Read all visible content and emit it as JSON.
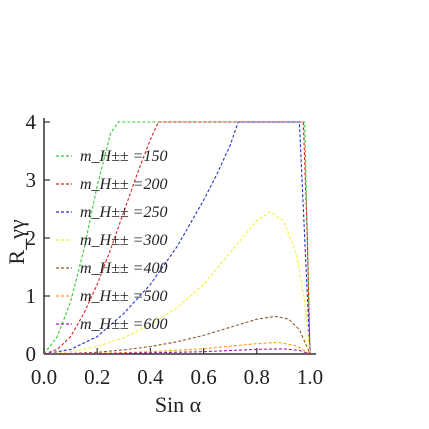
{
  "chart_data": {
    "type": "line",
    "xlabel": "Sin α",
    "ylabel": "R_γγ",
    "xlim": [
      0,
      1.0
    ],
    "ylim": [
      0,
      4
    ],
    "x_ticks": [
      "0.0",
      "0.2",
      "0.4",
      "0.6",
      "0.8",
      "1.0"
    ],
    "y_ticks": [
      "0",
      "1",
      "2",
      "3",
      "4"
    ],
    "legend_position": "top-left",
    "grid": false,
    "line_style": "dashed",
    "series": [
      {
        "name": "m_H±± =150",
        "color": "#33cc33",
        "x": [
          0.0,
          0.05,
          0.1,
          0.15,
          0.2,
          0.25,
          0.28,
          0.98,
          0.99,
          1.0
        ],
        "y": [
          0.0,
          0.3,
          0.9,
          1.8,
          2.9,
          3.8,
          4.0,
          4.0,
          2.0,
          0.0
        ]
      },
      {
        "name": "m_H±± =200",
        "color": "#e02020",
        "x": [
          0.0,
          0.05,
          0.1,
          0.15,
          0.2,
          0.25,
          0.3,
          0.35,
          0.4,
          0.43,
          0.975,
          0.99,
          1.0
        ],
        "y": [
          0.0,
          0.08,
          0.3,
          0.7,
          1.2,
          1.8,
          2.45,
          3.1,
          3.7,
          4.0,
          4.0,
          2.0,
          0.0
        ]
      },
      {
        "name": "m_H±± =250",
        "color": "#2233cc",
        "x": [
          0.0,
          0.1,
          0.2,
          0.3,
          0.4,
          0.5,
          0.6,
          0.65,
          0.7,
          0.73,
          0.96,
          0.98,
          1.0
        ],
        "y": [
          0.0,
          0.08,
          0.3,
          0.7,
          1.2,
          1.85,
          2.65,
          3.1,
          3.6,
          4.0,
          4.0,
          2.0,
          0.0
        ]
      },
      {
        "name": "m_H±± =300",
        "color": "#f2f232",
        "x": [
          0.0,
          0.1,
          0.2,
          0.3,
          0.4,
          0.5,
          0.6,
          0.7,
          0.8,
          0.85,
          0.9,
          0.95,
          0.98,
          1.0
        ],
        "y": [
          0.0,
          0.04,
          0.13,
          0.28,
          0.5,
          0.8,
          1.2,
          1.75,
          2.3,
          2.45,
          2.3,
          1.7,
          0.9,
          0.0
        ]
      },
      {
        "name": "m_H±± =400",
        "color": "#8b5a2b",
        "x": [
          0.0,
          0.1,
          0.2,
          0.3,
          0.4,
          0.5,
          0.6,
          0.7,
          0.8,
          0.87,
          0.92,
          0.96,
          1.0
        ],
        "y": [
          0.0,
          0.01,
          0.03,
          0.07,
          0.13,
          0.21,
          0.32,
          0.46,
          0.6,
          0.65,
          0.6,
          0.42,
          0.0
        ]
      },
      {
        "name": "m_H±± =500",
        "color": "#ff9a1a",
        "x": [
          0.0,
          0.2,
          0.4,
          0.6,
          0.8,
          0.88,
          0.95,
          1.0
        ],
        "y": [
          0.0,
          0.01,
          0.04,
          0.09,
          0.18,
          0.2,
          0.14,
          0.0
        ]
      },
      {
        "name": "m_H±± =600",
        "color": "#9a1fb0",
        "x": [
          0.0,
          0.2,
          0.4,
          0.6,
          0.8,
          0.9,
          0.96,
          1.0
        ],
        "y": [
          0.0,
          0.005,
          0.02,
          0.04,
          0.08,
          0.09,
          0.06,
          0.0
        ]
      }
    ]
  }
}
